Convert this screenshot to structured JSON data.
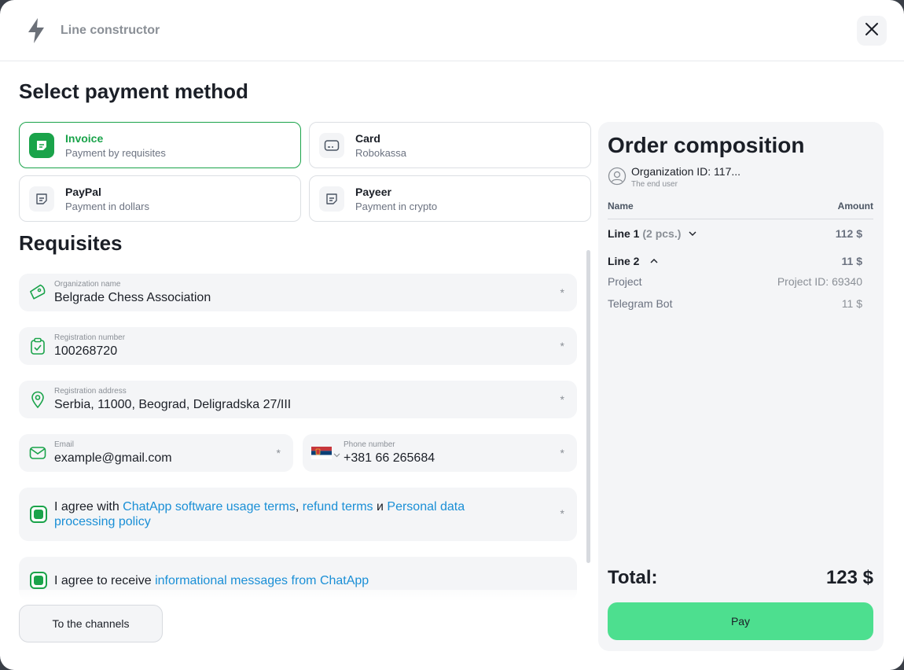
{
  "header": {
    "title": "Line constructor"
  },
  "payment": {
    "heading": "Select payment method",
    "methods": [
      {
        "title": "Invoice",
        "subtitle": "Payment by requisites"
      },
      {
        "title": "Card",
        "subtitle": "Robokassa"
      },
      {
        "title": "PayPal",
        "subtitle": "Payment in dollars"
      },
      {
        "title": "Payeer",
        "subtitle": "Payment in crypto"
      }
    ],
    "selected": "Invoice"
  },
  "requisites": {
    "heading": "Requisites",
    "required_mark": "*",
    "org_name": {
      "label": "Organization name",
      "value": "Belgrade Chess Association"
    },
    "reg_number": {
      "label": "Registration number",
      "value": "100268720"
    },
    "reg_address": {
      "label": "Registration address",
      "value": "Serbia, 11000, Beograd, Deligradska 27/III"
    },
    "email": {
      "label": "Email",
      "value": "example@gmail.com"
    },
    "phone": {
      "label": "Phone number",
      "value": "+381 66 265684",
      "country": "Serbia"
    }
  },
  "agreements": {
    "terms": {
      "prefix": "I agree with ",
      "link1": "ChatApp software usage terms",
      "sep": ",",
      "link2": "refund terms",
      "conj": "и",
      "link3_a": "Personal data",
      "link3_b": "processing policy",
      "checked": true
    },
    "messages": {
      "prefix": "I agree to receive ",
      "link": "informational messages from ChatApp",
      "checked": true
    }
  },
  "footer": {
    "channels_button": "To the channels"
  },
  "order": {
    "heading": "Order composition",
    "org_id": "Organization ID: 117...",
    "org_role": "The end user",
    "col_name": "Name",
    "col_amount": "Amount",
    "line1": {
      "label": "Line 1",
      "qty": "(2 pcs.)",
      "amount": "112 $"
    },
    "line2": {
      "label": "Line 2",
      "amount": "11 $"
    },
    "project": {
      "label": "Project",
      "value": "Project ID: 69340"
    },
    "bot": {
      "label": "Telegram Bot",
      "value": "11 $"
    },
    "total_label": "Total:",
    "total_value": "123 $",
    "pay_button": "Pay"
  },
  "colors": {
    "accent": "#1aa34a",
    "pay": "#4ddf8f",
    "link": "#1a8fd6"
  }
}
